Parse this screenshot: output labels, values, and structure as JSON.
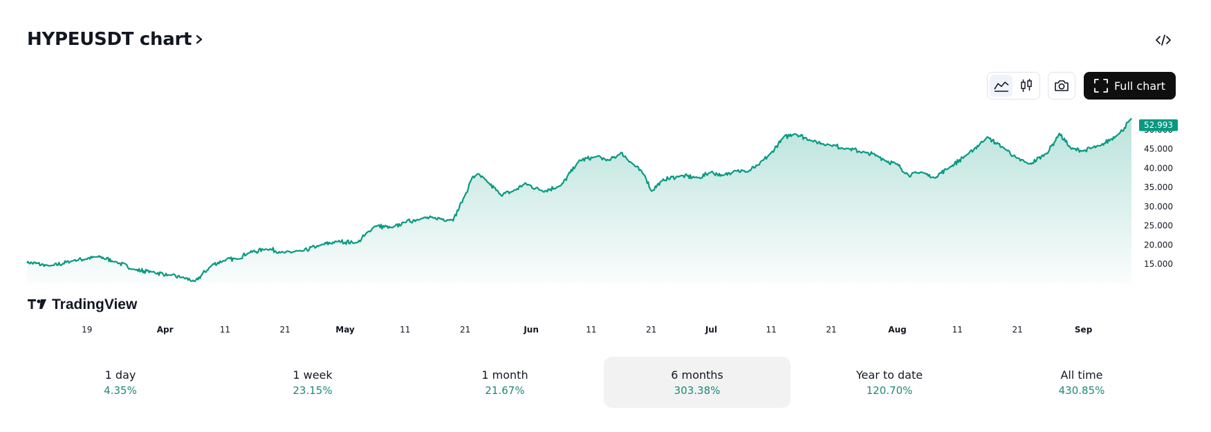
{
  "header": {
    "title": "HYPEUSDT chart",
    "chevron": "chevron-right-icon",
    "embed_icon": "code-icon"
  },
  "toolbar": {
    "area_icon": "area-chart-icon",
    "candles_icon": "candlestick-icon",
    "snapshot_icon": "camera-icon",
    "full_chart_icon": "fullscreen-icon",
    "full_chart_label": "Full chart"
  },
  "colors": {
    "line": "#089981",
    "fill_top": "#089981",
    "badge": "#089981",
    "positive": "#1a8a74"
  },
  "chart_data": {
    "type": "area",
    "symbol": "HYPEUSDT",
    "watermark": "TradingView",
    "last_price": "52.993",
    "ylim": [
      10,
      55
    ],
    "y_ticks": [
      "50.000",
      "45.000",
      "40.000",
      "35.000",
      "30.000",
      "25.000",
      "20.000",
      "15.000"
    ],
    "y_tick_values": [
      50,
      45,
      40,
      35,
      30,
      25,
      20,
      15
    ],
    "x_ticks": [
      "19",
      "Apr",
      "11",
      "21",
      "May",
      "11",
      "21",
      "Jun",
      "11",
      "21",
      "Jul",
      "11",
      "21",
      "Aug",
      "11",
      "21",
      "Sep"
    ],
    "x_tick_days": [
      0,
      13,
      23,
      33,
      43,
      53,
      63,
      74,
      84,
      94,
      104,
      114,
      124,
      135,
      145,
      155,
      166
    ],
    "x_range_days": [
      -10,
      174
    ],
    "series": [
      {
        "name": "HYPEUSDT",
        "x": [
          -10,
          -6,
          -2,
          2,
          5,
          8,
          11,
          14,
          16,
          18,
          21,
          23,
          25,
          27,
          30,
          33,
          36,
          39,
          42,
          45,
          48,
          51,
          53,
          56,
          58,
          61,
          63,
          64,
          65,
          67,
          69,
          71,
          73,
          76,
          79,
          82,
          85,
          87,
          89,
          91,
          93,
          94,
          96,
          99,
          102,
          104,
          106,
          108,
          110,
          112,
          114,
          116,
          118,
          121,
          124,
          127,
          130,
          132,
          133,
          135,
          137,
          139,
          141,
          144,
          147,
          150,
          153,
          155,
          157,
          160,
          162,
          164,
          166,
          169,
          172,
          174
        ],
        "y": [
          15.5,
          14.5,
          16,
          17,
          15.5,
          13.5,
          13,
          12,
          11.5,
          10.5,
          15,
          16,
          16.5,
          18,
          19,
          18,
          18.5,
          20,
          21,
          20.5,
          25,
          24.5,
          26,
          27,
          27,
          26.5,
          33,
          37,
          38.5,
          36,
          33,
          34,
          36,
          34,
          35.5,
          42,
          43,
          42,
          44,
          41,
          38,
          34,
          37,
          38,
          37.5,
          39,
          38,
          39.5,
          39,
          41,
          44,
          48,
          49,
          47,
          46,
          45,
          44,
          43,
          42,
          41,
          38,
          39,
          37.5,
          40.5,
          44,
          48,
          45,
          42.5,
          41,
          44,
          49,
          45,
          44.5,
          46,
          49,
          53
        ]
      }
    ]
  },
  "periods": [
    {
      "label": "1 day",
      "change": "4.35%"
    },
    {
      "label": "1 week",
      "change": "23.15%"
    },
    {
      "label": "1 month",
      "change": "21.67%"
    },
    {
      "label": "6 months",
      "change": "303.38%"
    },
    {
      "label": "Year to date",
      "change": "120.70%"
    },
    {
      "label": "All time",
      "change": "430.85%"
    }
  ]
}
